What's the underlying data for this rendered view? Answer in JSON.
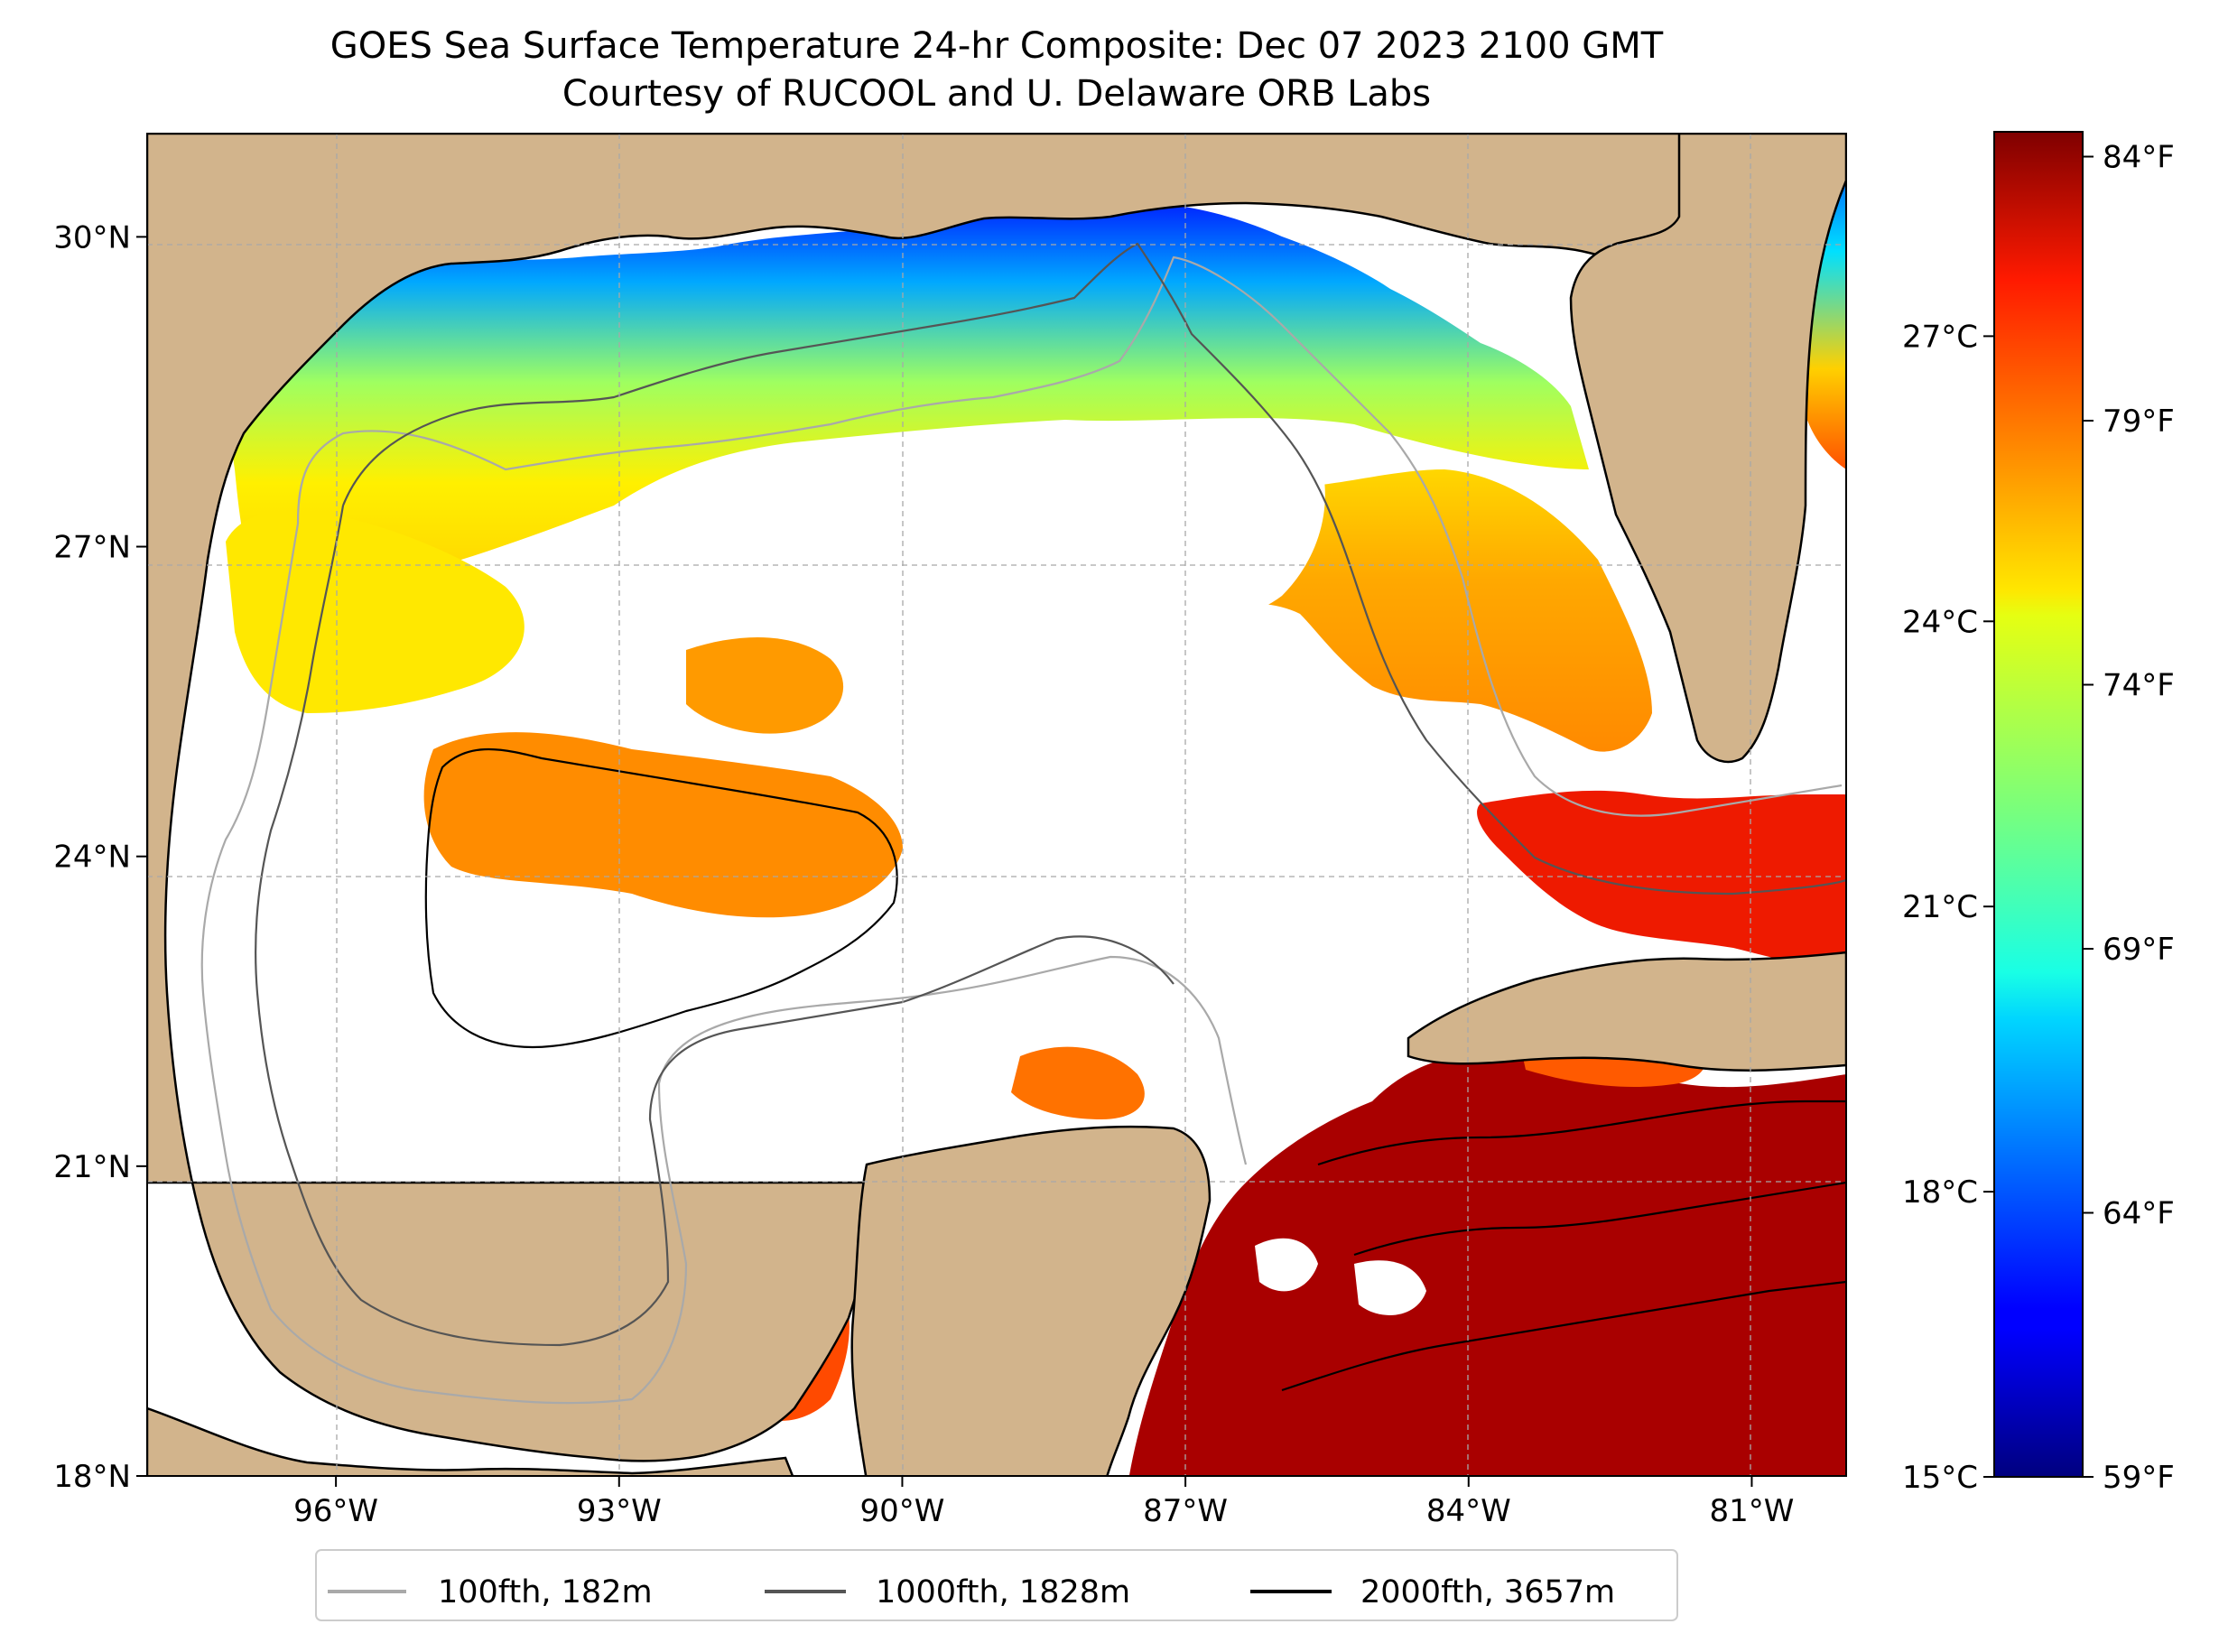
{
  "title": {
    "line1": "GOES Sea Surface Temperature 24-hr Composite: Dec 07 2023 2100 GMT",
    "line2": "Courtesy of RUCOOL and U. Delaware ORB Labs"
  },
  "map": {
    "lon_range": [
      -98.0,
      -80.0
    ],
    "lat_range": [
      18.0,
      31.0
    ],
    "grid": true,
    "land_color": "#d2b48c",
    "ocean_color": "#ffffff",
    "lat_ticks": [
      {
        "value": 18,
        "label": "18°N"
      },
      {
        "value": 21,
        "label": "21°N"
      },
      {
        "value": 24,
        "label": "24°N"
      },
      {
        "value": 27,
        "label": "27°N"
      },
      {
        "value": 30,
        "label": "30°N"
      }
    ],
    "lon_ticks": [
      {
        "value": -96,
        "label": "96°W"
      },
      {
        "value": -93,
        "label": "93°W"
      },
      {
        "value": -90,
        "label": "90°W"
      },
      {
        "value": -87,
        "label": "87°W"
      },
      {
        "value": -84,
        "label": "84°W"
      },
      {
        "value": -81,
        "label": "81°W"
      }
    ]
  },
  "colorbar": {
    "colormap": "jet",
    "celsius_ticks": [
      {
        "value": 15,
        "label": "15°C"
      },
      {
        "value": 18,
        "label": "18°C"
      },
      {
        "value": 21,
        "label": "21°C"
      },
      {
        "value": 24,
        "label": "24°C"
      },
      {
        "value": 27,
        "label": "27°C"
      }
    ],
    "fahrenheit_ticks": [
      {
        "value": 59,
        "label": "59°F"
      },
      {
        "value": 64,
        "label": "64°F"
      },
      {
        "value": 69,
        "label": "69°F"
      },
      {
        "value": 74,
        "label": "74°F"
      },
      {
        "value": 79,
        "label": "79°F"
      },
      {
        "value": 84,
        "label": "84°F"
      }
    ]
  },
  "legend": {
    "placement": "bottom-center",
    "items": [
      {
        "label": "100fth, 182m",
        "color": "#a9a9a9"
      },
      {
        "label": "1000fth, 1828m",
        "color": "#555555"
      },
      {
        "label": "2000fth, 3657m",
        "color": "#000000"
      }
    ]
  }
}
